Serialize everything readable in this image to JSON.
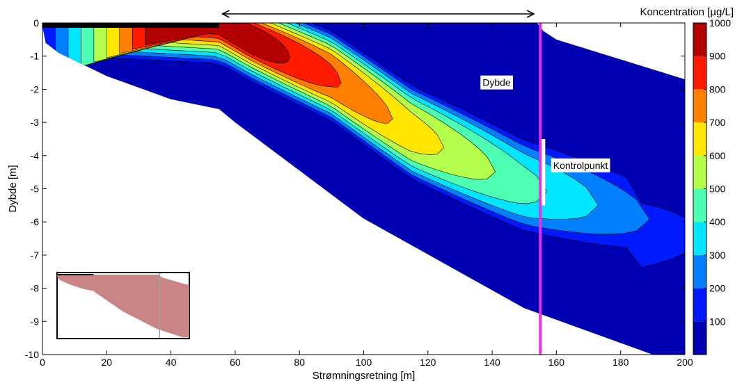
{
  "chart_data": {
    "type": "heatmap",
    "subtype": "filled-contour",
    "xlabel": "Strømningsretning [m]",
    "ylabel": "Dybde [m]",
    "colorbar_label": "Koncentration [µg/L]",
    "xlim": [
      0,
      200
    ],
    "ylim": [
      -10,
      0
    ],
    "x_ticks": [
      0,
      20,
      40,
      60,
      80,
      100,
      120,
      140,
      160,
      180,
      200
    ],
    "y_ticks": [
      0,
      -1,
      -2,
      -3,
      -4,
      -5,
      -6,
      -7,
      -8,
      -9,
      -10
    ],
    "colorbar_range": [
      0,
      1000
    ],
    "colorbar_ticks": [
      100,
      200,
      300,
      400,
      500,
      600,
      700,
      800,
      900,
      1000
    ],
    "contour_levels": [
      0,
      100,
      200,
      300,
      400,
      500,
      600,
      700,
      800,
      900,
      1000
    ],
    "colormap": "jet",
    "domain_bottom_boundary": {
      "x": [
        0,
        1,
        5,
        20,
        40,
        55,
        60,
        100,
        150,
        190,
        200
      ],
      "y": [
        -0.1,
        -0.6,
        -0.9,
        -1.6,
        -2.3,
        -2.6,
        -3.0,
        -5.9,
        -8.6,
        -10.0,
        -10.0
      ]
    },
    "domain_top_boundary": {
      "x": [
        0,
        154,
        156,
        160,
        200
      ],
      "y": [
        0,
        0,
        -0.25,
        -0.5,
        -1.7
      ]
    },
    "source_zone": {
      "x_start": 0,
      "x_end": 55,
      "depth": 0
    },
    "plume_peaks": [
      {
        "x": 65,
        "y": -0.5,
        "value": 1000
      },
      {
        "x": 90,
        "y": -1.6,
        "value": 650
      },
      {
        "x": 115,
        "y": -3.3,
        "value": 520
      },
      {
        "x": 150,
        "y": -4.9,
        "value": 480
      },
      {
        "x": 185,
        "y": -5.8,
        "value": 420
      }
    ],
    "control_line": {
      "x": 155,
      "color": "#e62ee6"
    },
    "annotations": [
      {
        "text": "Dybde",
        "x": 137,
        "y": -1.9
      },
      {
        "text": "Kontrolpunkt",
        "x": 159,
        "y": -4.4
      }
    ],
    "arrow": {
      "x_start": 56,
      "x_end": 153,
      "label": ""
    }
  },
  "colors": {
    "background": "#ffffff",
    "control_line": "#e62ee6",
    "inset_fill": "#c98586",
    "source_bar": "#000000"
  }
}
